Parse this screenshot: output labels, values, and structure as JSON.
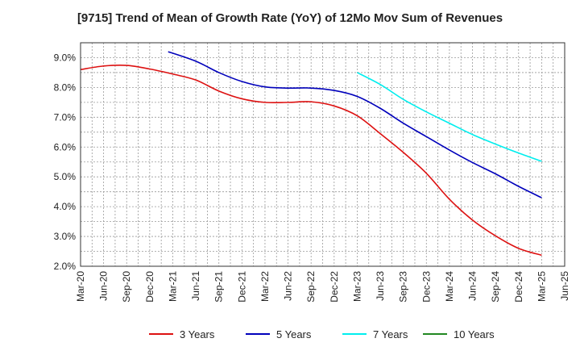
{
  "chart_data": {
    "type": "line",
    "title": "[9715]  Trend of Mean of Growth Rate (YoY) of 12Mo Mov Sum of Revenues",
    "xlabel": "",
    "ylabel": "",
    "ylim": [
      2.0,
      9.5
    ],
    "y_ticks": [
      "9.0%",
      "8.0%",
      "7.0%",
      "6.0%",
      "5.0%",
      "4.0%",
      "3.0%",
      "2.0%"
    ],
    "y_tick_values": [
      9.0,
      8.0,
      7.0,
      6.0,
      5.0,
      4.0,
      3.0,
      2.0
    ],
    "x_ticks": [
      "Mar-20",
      "Jun-20",
      "Sep-20",
      "Dec-20",
      "Mar-21",
      "Jun-21",
      "Sep-21",
      "Dec-21",
      "Mar-22",
      "Jun-22",
      "Sep-22",
      "Dec-22",
      "Mar-23",
      "Jun-23",
      "Sep-23",
      "Dec-23",
      "Mar-24",
      "Jun-24",
      "Sep-24",
      "Dec-24",
      "Mar-25",
      "Jun-25"
    ],
    "grid": true,
    "legend_position": "bottom",
    "series": [
      {
        "name": "3 Years",
        "color": "#dd1111",
        "points": [
          [
            0,
            8.6
          ],
          [
            1,
            8.72
          ],
          [
            2,
            8.74
          ],
          [
            3,
            8.62
          ],
          [
            4,
            8.45
          ],
          [
            5,
            8.25
          ],
          [
            6,
            7.88
          ],
          [
            7,
            7.62
          ],
          [
            8,
            7.5
          ],
          [
            9,
            7.5
          ],
          [
            10,
            7.52
          ],
          [
            11,
            7.38
          ],
          [
            12,
            7.05
          ],
          [
            13,
            6.45
          ],
          [
            14,
            5.82
          ],
          [
            15,
            5.12
          ],
          [
            16,
            4.25
          ],
          [
            17,
            3.55
          ],
          [
            18,
            3.02
          ],
          [
            19,
            2.6
          ],
          [
            20,
            2.37
          ]
        ]
      },
      {
        "name": "5 Years",
        "color": "#0000bb",
        "points": [
          [
            3.8,
            9.2
          ],
          [
            5,
            8.88
          ],
          [
            6,
            8.5
          ],
          [
            7,
            8.2
          ],
          [
            8,
            8.02
          ],
          [
            9,
            7.98
          ],
          [
            10,
            7.98
          ],
          [
            11,
            7.9
          ],
          [
            12,
            7.7
          ],
          [
            13,
            7.3
          ],
          [
            14,
            6.8
          ],
          [
            15,
            6.35
          ],
          [
            16,
            5.9
          ],
          [
            17,
            5.48
          ],
          [
            18,
            5.1
          ],
          [
            19,
            4.68
          ],
          [
            20,
            4.3
          ]
        ]
      },
      {
        "name": "7 Years",
        "color": "#00eeee",
        "points": [
          [
            12,
            8.5
          ],
          [
            13,
            8.1
          ],
          [
            14,
            7.6
          ],
          [
            15,
            7.18
          ],
          [
            16,
            6.8
          ],
          [
            17,
            6.42
          ],
          [
            18,
            6.1
          ],
          [
            19,
            5.8
          ],
          [
            20,
            5.52
          ]
        ]
      },
      {
        "name": "10 Years",
        "color": "#228822",
        "points": []
      }
    ]
  }
}
